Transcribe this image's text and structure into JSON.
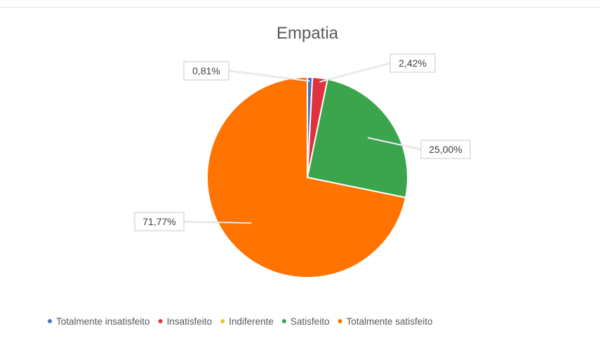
{
  "chart_data": {
    "type": "pie",
    "title": "Empatia",
    "categories": [
      "Totalmente insatisfeito",
      "Insatisfeito",
      "Indiferente",
      "Satisfeito",
      "Totalmente satisfeito"
    ],
    "values": [
      0.81,
      2.42,
      0.0,
      25.0,
      71.77
    ],
    "data_labels": [
      "0,81%",
      "2,42%",
      "",
      "25,00%",
      "71,77%"
    ],
    "colors": [
      "#4472c4",
      "#e0323e",
      "#f2c232",
      "#3aa54c",
      "#ff7300"
    ],
    "legend_position": "bottom",
    "start_angle": "top, clockwise"
  }
}
